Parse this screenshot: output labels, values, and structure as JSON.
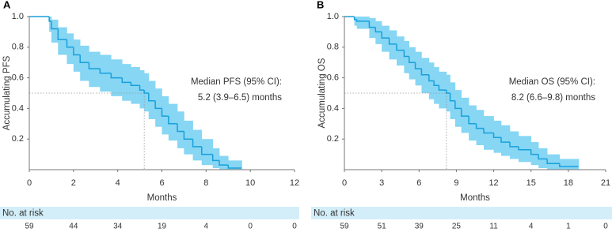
{
  "chart_data": [
    {
      "type": "kaplan-meier",
      "title": "A",
      "xlabel": "Months",
      "ylabel": "Accumulating PFS",
      "x": [
        0,
        0.9,
        1.0,
        1.3,
        1.7,
        2.0,
        2.3,
        2.7,
        3.2,
        3.7,
        4.2,
        4.6,
        5.0,
        5.2,
        5.4,
        5.7,
        6.0,
        6.3,
        6.7,
        7.0,
        7.4,
        7.8,
        8.3,
        8.6,
        9.0,
        9.6
      ],
      "values": [
        1,
        0.97,
        0.92,
        0.85,
        0.8,
        0.75,
        0.7,
        0.66,
        0.63,
        0.6,
        0.57,
        0.55,
        0.52,
        0.5,
        0.45,
        0.4,
        0.35,
        0.3,
        0.25,
        0.2,
        0.15,
        0.1,
        0.06,
        0.03,
        0.01,
        0.01
      ],
      "ci_upper": [
        1,
        1,
        0.98,
        0.93,
        0.89,
        0.85,
        0.81,
        0.77,
        0.75,
        0.72,
        0.69,
        0.67,
        0.65,
        0.63,
        0.58,
        0.53,
        0.48,
        0.43,
        0.38,
        0.32,
        0.26,
        0.2,
        0.14,
        0.09,
        0.06,
        0.06
      ],
      "ci_lower": [
        1,
        0.9,
        0.83,
        0.75,
        0.69,
        0.64,
        0.58,
        0.54,
        0.51,
        0.48,
        0.45,
        0.43,
        0.4,
        0.38,
        0.33,
        0.28,
        0.23,
        0.19,
        0.14,
        0.1,
        0.06,
        0.03,
        0.01,
        0,
        0,
        0
      ],
      "color": "#1aa0da",
      "band_color": "#86d6f4",
      "median": {
        "x": 5.2,
        "y": 0.5
      },
      "annotation": [
        "Median PFS (95% CI):",
        "5.2 (3.9–6.5) months"
      ],
      "xlim": [
        0,
        12
      ],
      "xticks": [
        0,
        2,
        4,
        6,
        8,
        10,
        12
      ],
      "ylim": [
        0,
        1
      ],
      "yticks": [
        0.2,
        0.4,
        0.6,
        0.8,
        {
          "value": 1,
          "label": "1.0"
        }
      ],
      "risk_table": {
        "title": "No. at risk",
        "values": [
          59,
          44,
          34,
          19,
          4,
          0,
          0
        ]
      }
    },
    {
      "type": "kaplan-meier",
      "title": "B",
      "xlabel": "Months",
      "ylabel": "Accumulating OS",
      "x": [
        0,
        0.8,
        1,
        2,
        2.5,
        3,
        3.6,
        4.2,
        4.8,
        5.2,
        5.7,
        6.2,
        6.8,
        7.2,
        7.6,
        8.2,
        8.5,
        8.9,
        9.4,
        10.0,
        10.6,
        11.2,
        12.0,
        12.6,
        13.3,
        14.0,
        15.0,
        15.6,
        16.3,
        17.3,
        18.8
      ],
      "values": [
        1,
        0.98,
        0.97,
        0.93,
        0.9,
        0.86,
        0.82,
        0.78,
        0.74,
        0.7,
        0.66,
        0.62,
        0.58,
        0.55,
        0.52,
        0.5,
        0.45,
        0.4,
        0.35,
        0.3,
        0.27,
        0.24,
        0.21,
        0.18,
        0.15,
        0.13,
        0.1,
        0.07,
        0.04,
        0.02,
        0.02
      ],
      "ci_upper": [
        1,
        1,
        1,
        0.99,
        0.97,
        0.94,
        0.91,
        0.87,
        0.84,
        0.8,
        0.77,
        0.73,
        0.7,
        0.67,
        0.64,
        0.62,
        0.57,
        0.52,
        0.47,
        0.42,
        0.39,
        0.35,
        0.32,
        0.29,
        0.25,
        0.22,
        0.18,
        0.14,
        0.1,
        0.07,
        0.07
      ],
      "ci_lower": [
        1,
        0.94,
        0.92,
        0.86,
        0.82,
        0.77,
        0.72,
        0.68,
        0.63,
        0.59,
        0.55,
        0.5,
        0.46,
        0.43,
        0.4,
        0.38,
        0.33,
        0.28,
        0.24,
        0.19,
        0.16,
        0.13,
        0.11,
        0.09,
        0.07,
        0.05,
        0.03,
        0.01,
        0,
        0,
        0
      ],
      "color": "#1aa0da",
      "band_color": "#86d6f4",
      "median": {
        "x": 8.2,
        "y": 0.5
      },
      "annotation": [
        "Median OS (95% CI):",
        "8.2 (6.6–9.8) months"
      ],
      "xlim": [
        0,
        21
      ],
      "xticks": [
        0,
        3,
        6,
        9,
        12,
        15,
        18,
        21
      ],
      "ylim": [
        0,
        1
      ],
      "yticks": [
        0.2,
        0.4,
        0.6,
        0.8,
        {
          "value": 1,
          "label": "1.0"
        }
      ],
      "risk_table": {
        "title": "No. at risk",
        "values": [
          59,
          51,
          39,
          25,
          11,
          4,
          1,
          0
        ]
      }
    }
  ]
}
